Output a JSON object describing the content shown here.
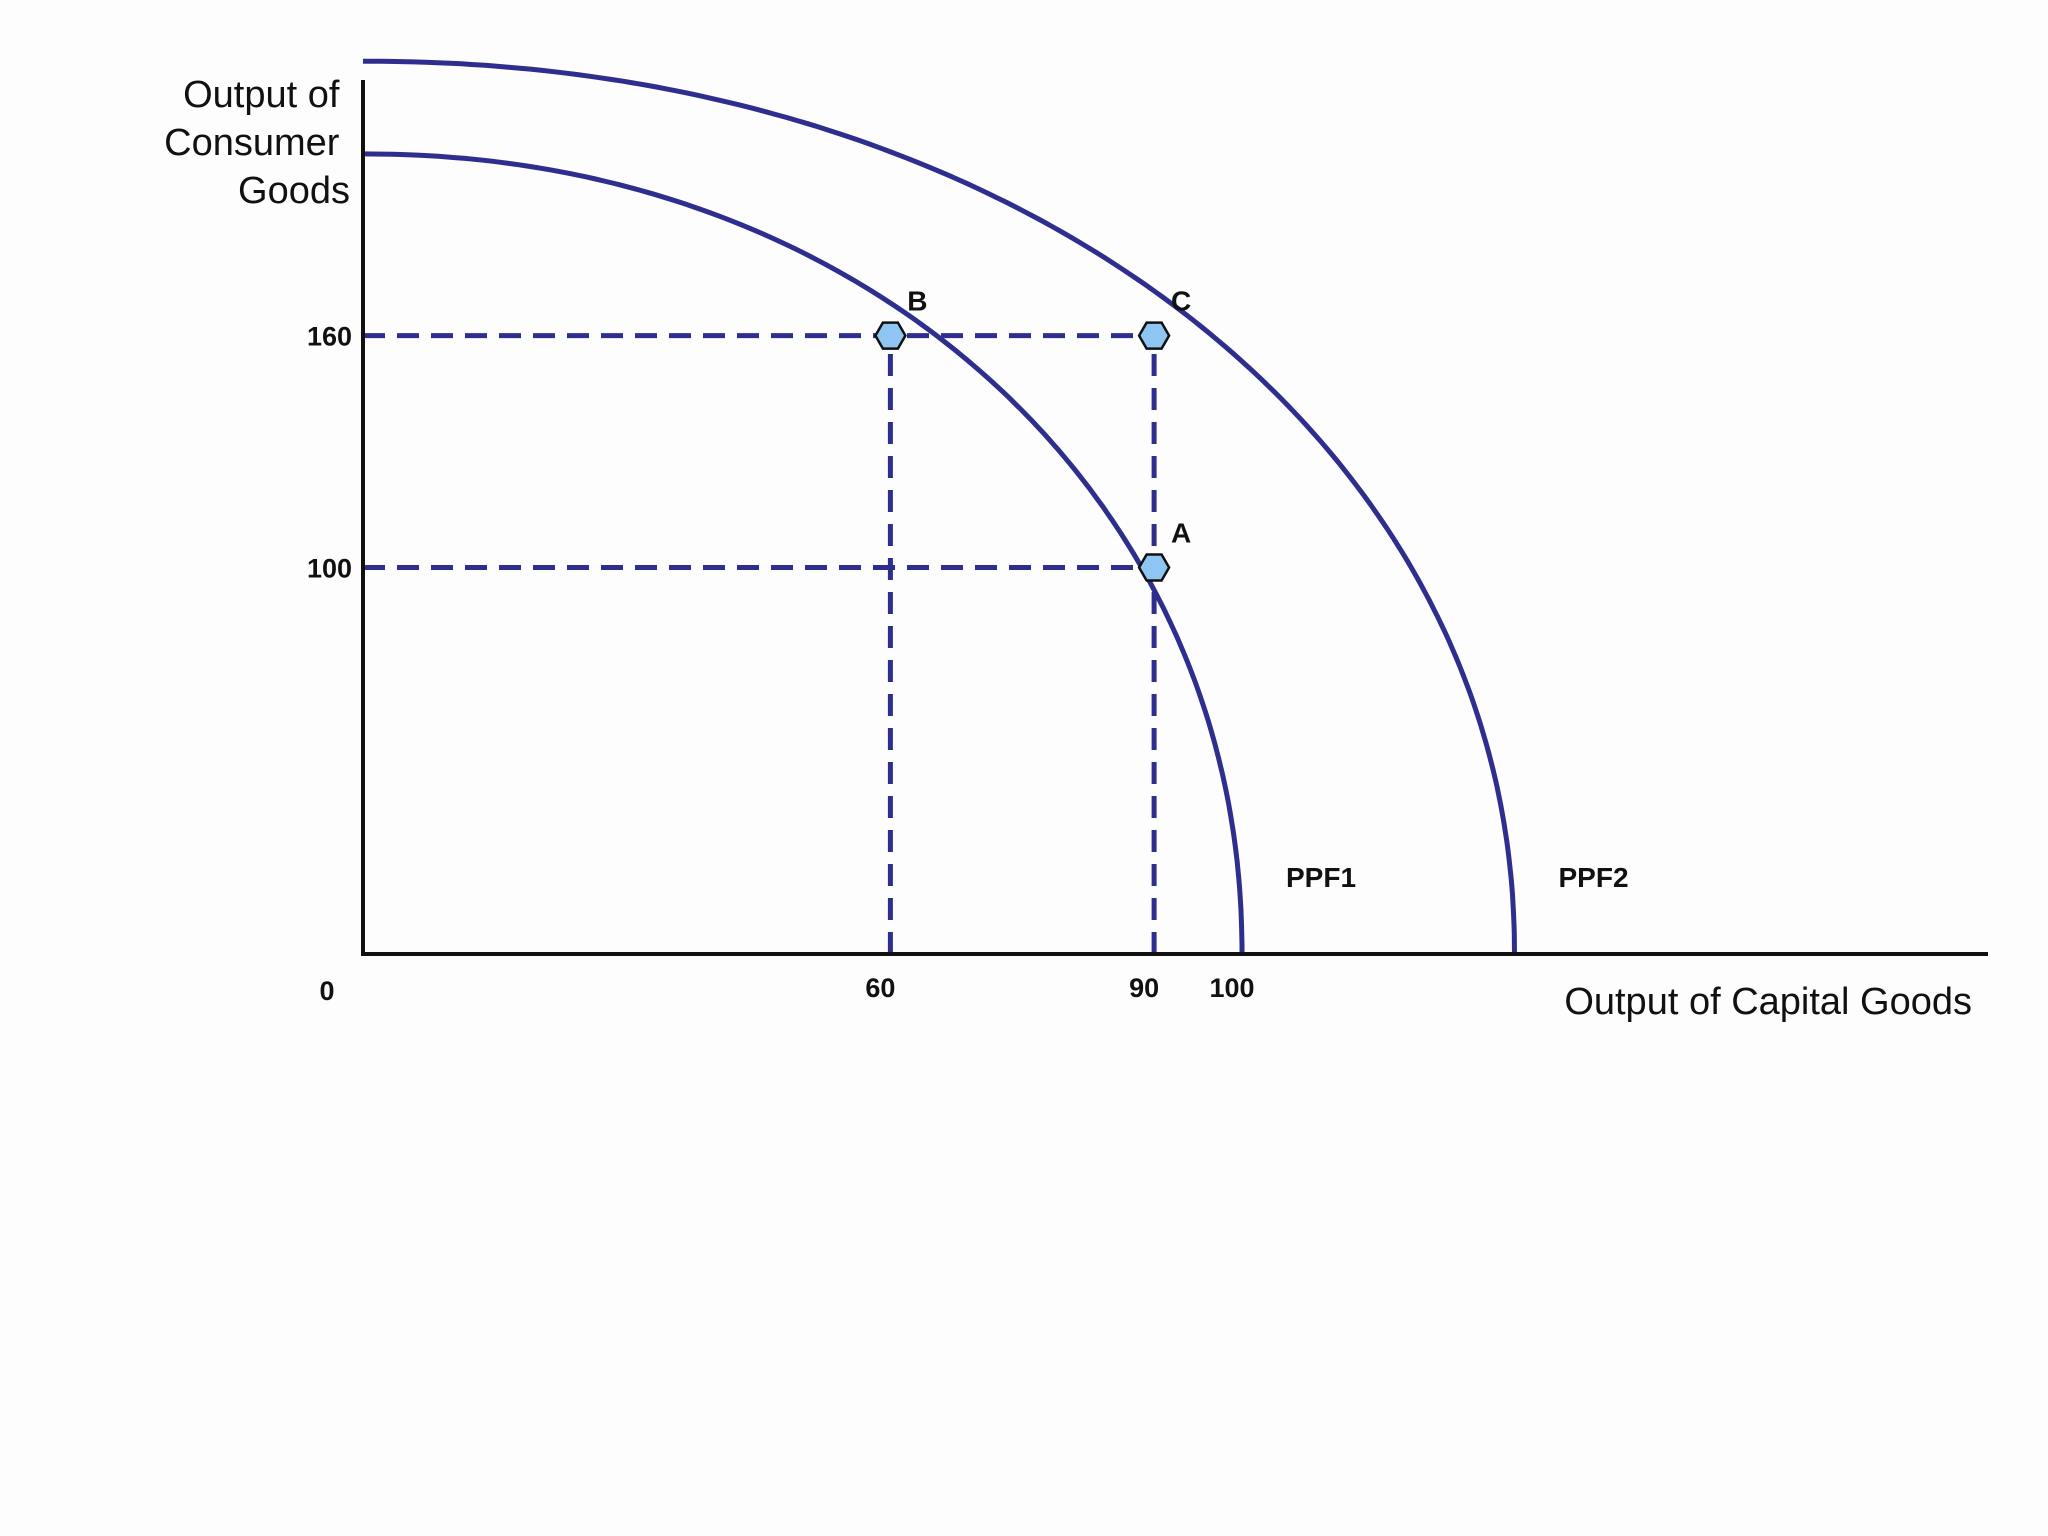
{
  "chart_data": {
    "type": "line",
    "ylabel": [
      "Output of",
      "Consumer",
      "Goods"
    ],
    "xlabel": "Output of Capital Goods",
    "origin_label": "0",
    "x_ticks": [
      {
        "label": "60",
        "value": 60
      },
      {
        "label": "90",
        "value": 90
      },
      {
        "label": "100",
        "value": 100
      }
    ],
    "y_ticks": [
      {
        "label": "160",
        "value": 160
      },
      {
        "label": "100",
        "value": 100
      }
    ],
    "series": [
      {
        "name": "PPF1",
        "x_intercept": 100,
        "y_intercept": 207,
        "exponent": 2.07
      },
      {
        "name": "PPF2",
        "x_intercept": 131,
        "y_intercept": 231,
        "exponent": 2.07
      }
    ],
    "points": [
      {
        "label": "A",
        "x": 90,
        "y": 100
      },
      {
        "label": "B",
        "x": 60,
        "y": 160
      },
      {
        "label": "C",
        "x": 90,
        "y": 160
      }
    ],
    "guides": [
      {
        "from": [
          0,
          160
        ],
        "to": [
          90,
          160
        ]
      },
      {
        "from": [
          0,
          100
        ],
        "to": [
          90,
          100
        ]
      },
      {
        "from": [
          60,
          0
        ],
        "to": [
          60,
          160
        ]
      },
      {
        "from": [
          90,
          0
        ],
        "to": [
          90,
          160
        ]
      }
    ],
    "colors": {
      "curve": "#2e2e8f",
      "marker_fill": "#8ec5f2"
    },
    "grid": false
  }
}
